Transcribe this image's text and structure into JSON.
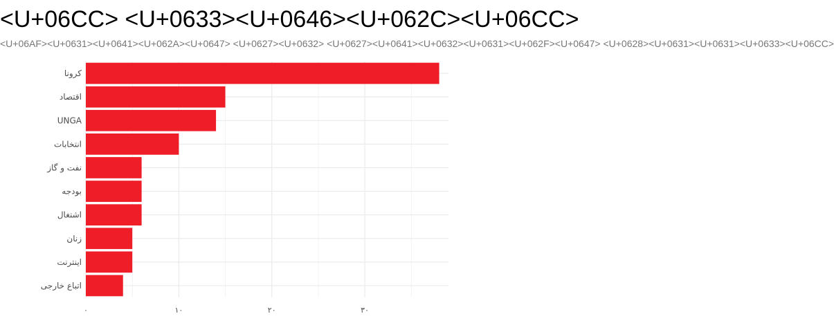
{
  "title": "<U+06CC> <U+0633><U+0646><U+062C><U+06CC>",
  "subtitle": "<U+06AF><U+0631><U+0641><U+062A><U+0647> <U+0627><U+0632> <U+0627><U+0641><U+0632><U+0631><U+062F><U+0647> <U+0628><U+0631><U+0631><U+0633><U+06CC>",
  "colors": {
    "bar": "#ee1d27",
    "grid": "#ebebeb"
  },
  "chart_data": {
    "type": "bar",
    "orientation": "horizontal",
    "categories": [
      "کرونا",
      "اقتصاد",
      "UNGA",
      "انتخابات",
      "نفت و گاز",
      "بودجه",
      "اشتغال",
      "زنان",
      "اینترنت",
      "اتباع خارجی"
    ],
    "values": [
      38,
      15,
      14,
      10,
      6,
      6,
      6,
      5,
      5,
      4
    ],
    "xlim": [
      0,
      39
    ],
    "xticks": [
      0,
      10,
      20,
      30
    ],
    "xtick_labels": [
      "۰",
      "۱۰",
      "۲۰",
      "۳۰"
    ],
    "grid": true,
    "legend": "none"
  }
}
